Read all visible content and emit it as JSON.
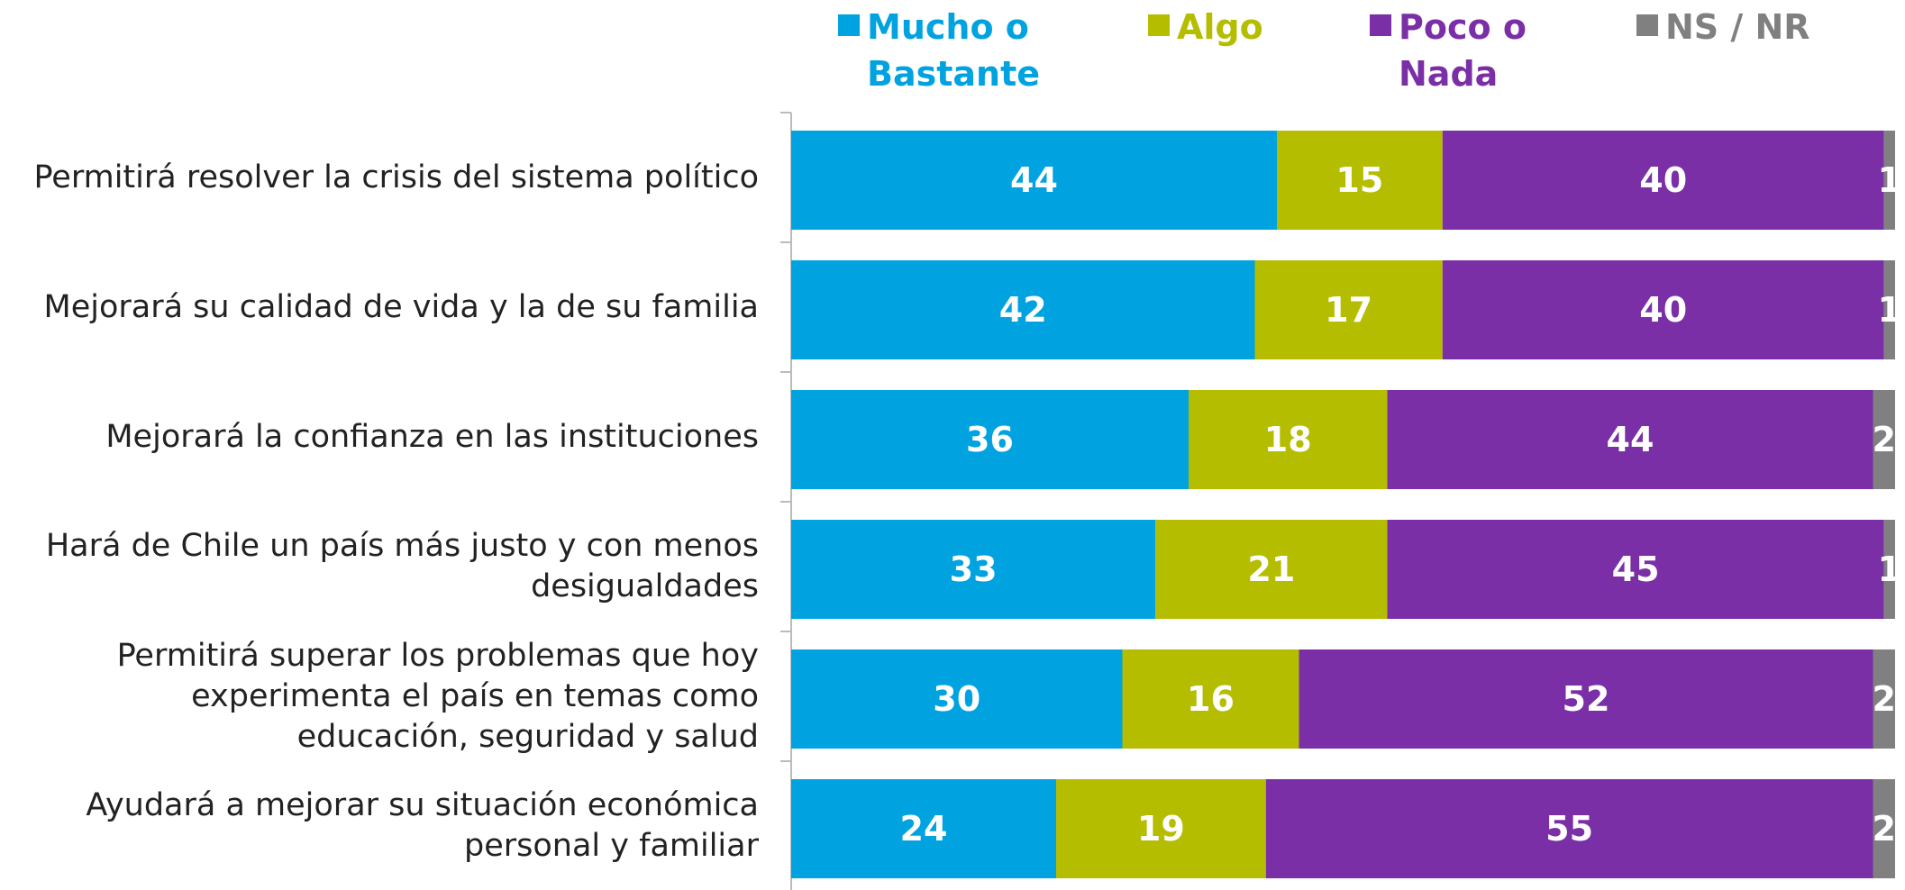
{
  "chart_data": {
    "type": "stacked-bar-horizontal",
    "categories": [
      "Permitirá resolver la crisis del sistema político",
      "Mejorará su calidad de vida y la de su familia",
      "Mejorará la confianza en las instituciones",
      "Hará de Chile un país más justo y con menos desigualdades",
      "Permitirá superar los problemas que hoy experimenta el país en temas como educación, seguridad y salud",
      "Ayudará a mejorar su situación económica personal y familiar"
    ],
    "series": [
      {
        "name": "Mucho o Bastante",
        "color": "#00a3e0",
        "values": [
          44,
          42,
          36,
          33,
          30,
          24
        ]
      },
      {
        "name": "Algo",
        "color": "#b5bd00",
        "values": [
          15,
          17,
          18,
          21,
          16,
          19
        ]
      },
      {
        "name": "Poco o Nada",
        "color": "#7b2fa6",
        "values": [
          40,
          40,
          44,
          45,
          52,
          55
        ]
      },
      {
        "name": "NS / NR",
        "color": "#808080",
        "values": [
          1,
          1,
          2,
          1,
          2,
          2
        ]
      }
    ],
    "xlim": [
      0,
      100
    ]
  }
}
